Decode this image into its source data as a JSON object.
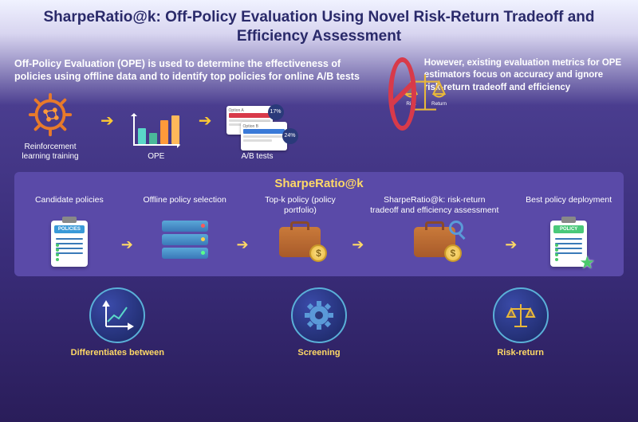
{
  "title": "SharpeRatio@k: Off-Policy Evaluation Using Novel Risk-Return Tradeoff and Efficiency Assessment",
  "top": {
    "left_text": "Off-Policy Evaluation (OPE) is used to determine the effectiveness of policies using offline data and to identify top policies for online A/B tests",
    "rl_label": "Reinforcement learning training",
    "ope_label": "OPE",
    "ab_label": "A/B tests",
    "ope_bars": {
      "heights": [
        20,
        14,
        30,
        36
      ],
      "colors": [
        "#5ad8c8",
        "#4ab89a",
        "#ff9a3a",
        "#ffb85a"
      ]
    },
    "ab": {
      "option_a": "Option A",
      "pct_a": "17%",
      "option_b": "Option B",
      "pct_b": "24%",
      "hdr_a": "#d83a4a",
      "hdr_b": "#3a7ad8"
    },
    "rl_gear_color": "#e87a2a",
    "right_text": "However, existing evaluation metrics for OPE estimators focus on accuracy and ignore risk-return tradeoff and efficiency",
    "scale_labels": {
      "risk": "Risk",
      "return": "Return"
    },
    "prohibit_color": "#d83a4a",
    "scale_color": "#e8b83a"
  },
  "band": {
    "title": "SharpeRatio@k",
    "items": [
      {
        "label": "Candidate policies",
        "clip_head": "#3a9ad8",
        "clip_title": "POLICIES"
      },
      {
        "label": "Offline policy selection"
      },
      {
        "label": "Top-k policy (policy portfolio)"
      },
      {
        "label": "SharpeRatio@k: risk-return tradeoff and efficiency assessment"
      },
      {
        "label": "Best policy deployment",
        "clip_head": "#4ac97a",
        "clip_title": "POLICY"
      }
    ]
  },
  "bottom": {
    "items": [
      {
        "label": "Differentiates between"
      },
      {
        "label": "Screening"
      },
      {
        "label": "Risk-return"
      }
    ],
    "circle_border": "#5ab0d8",
    "chart_color": "#5ad8c8",
    "gear_color": "#5a9ad8",
    "scale_color": "#e8b83a"
  },
  "colors": {
    "title": "#2a2a6a",
    "band_bg": "#5a4aa8",
    "accent_yellow": "#ffd966"
  }
}
